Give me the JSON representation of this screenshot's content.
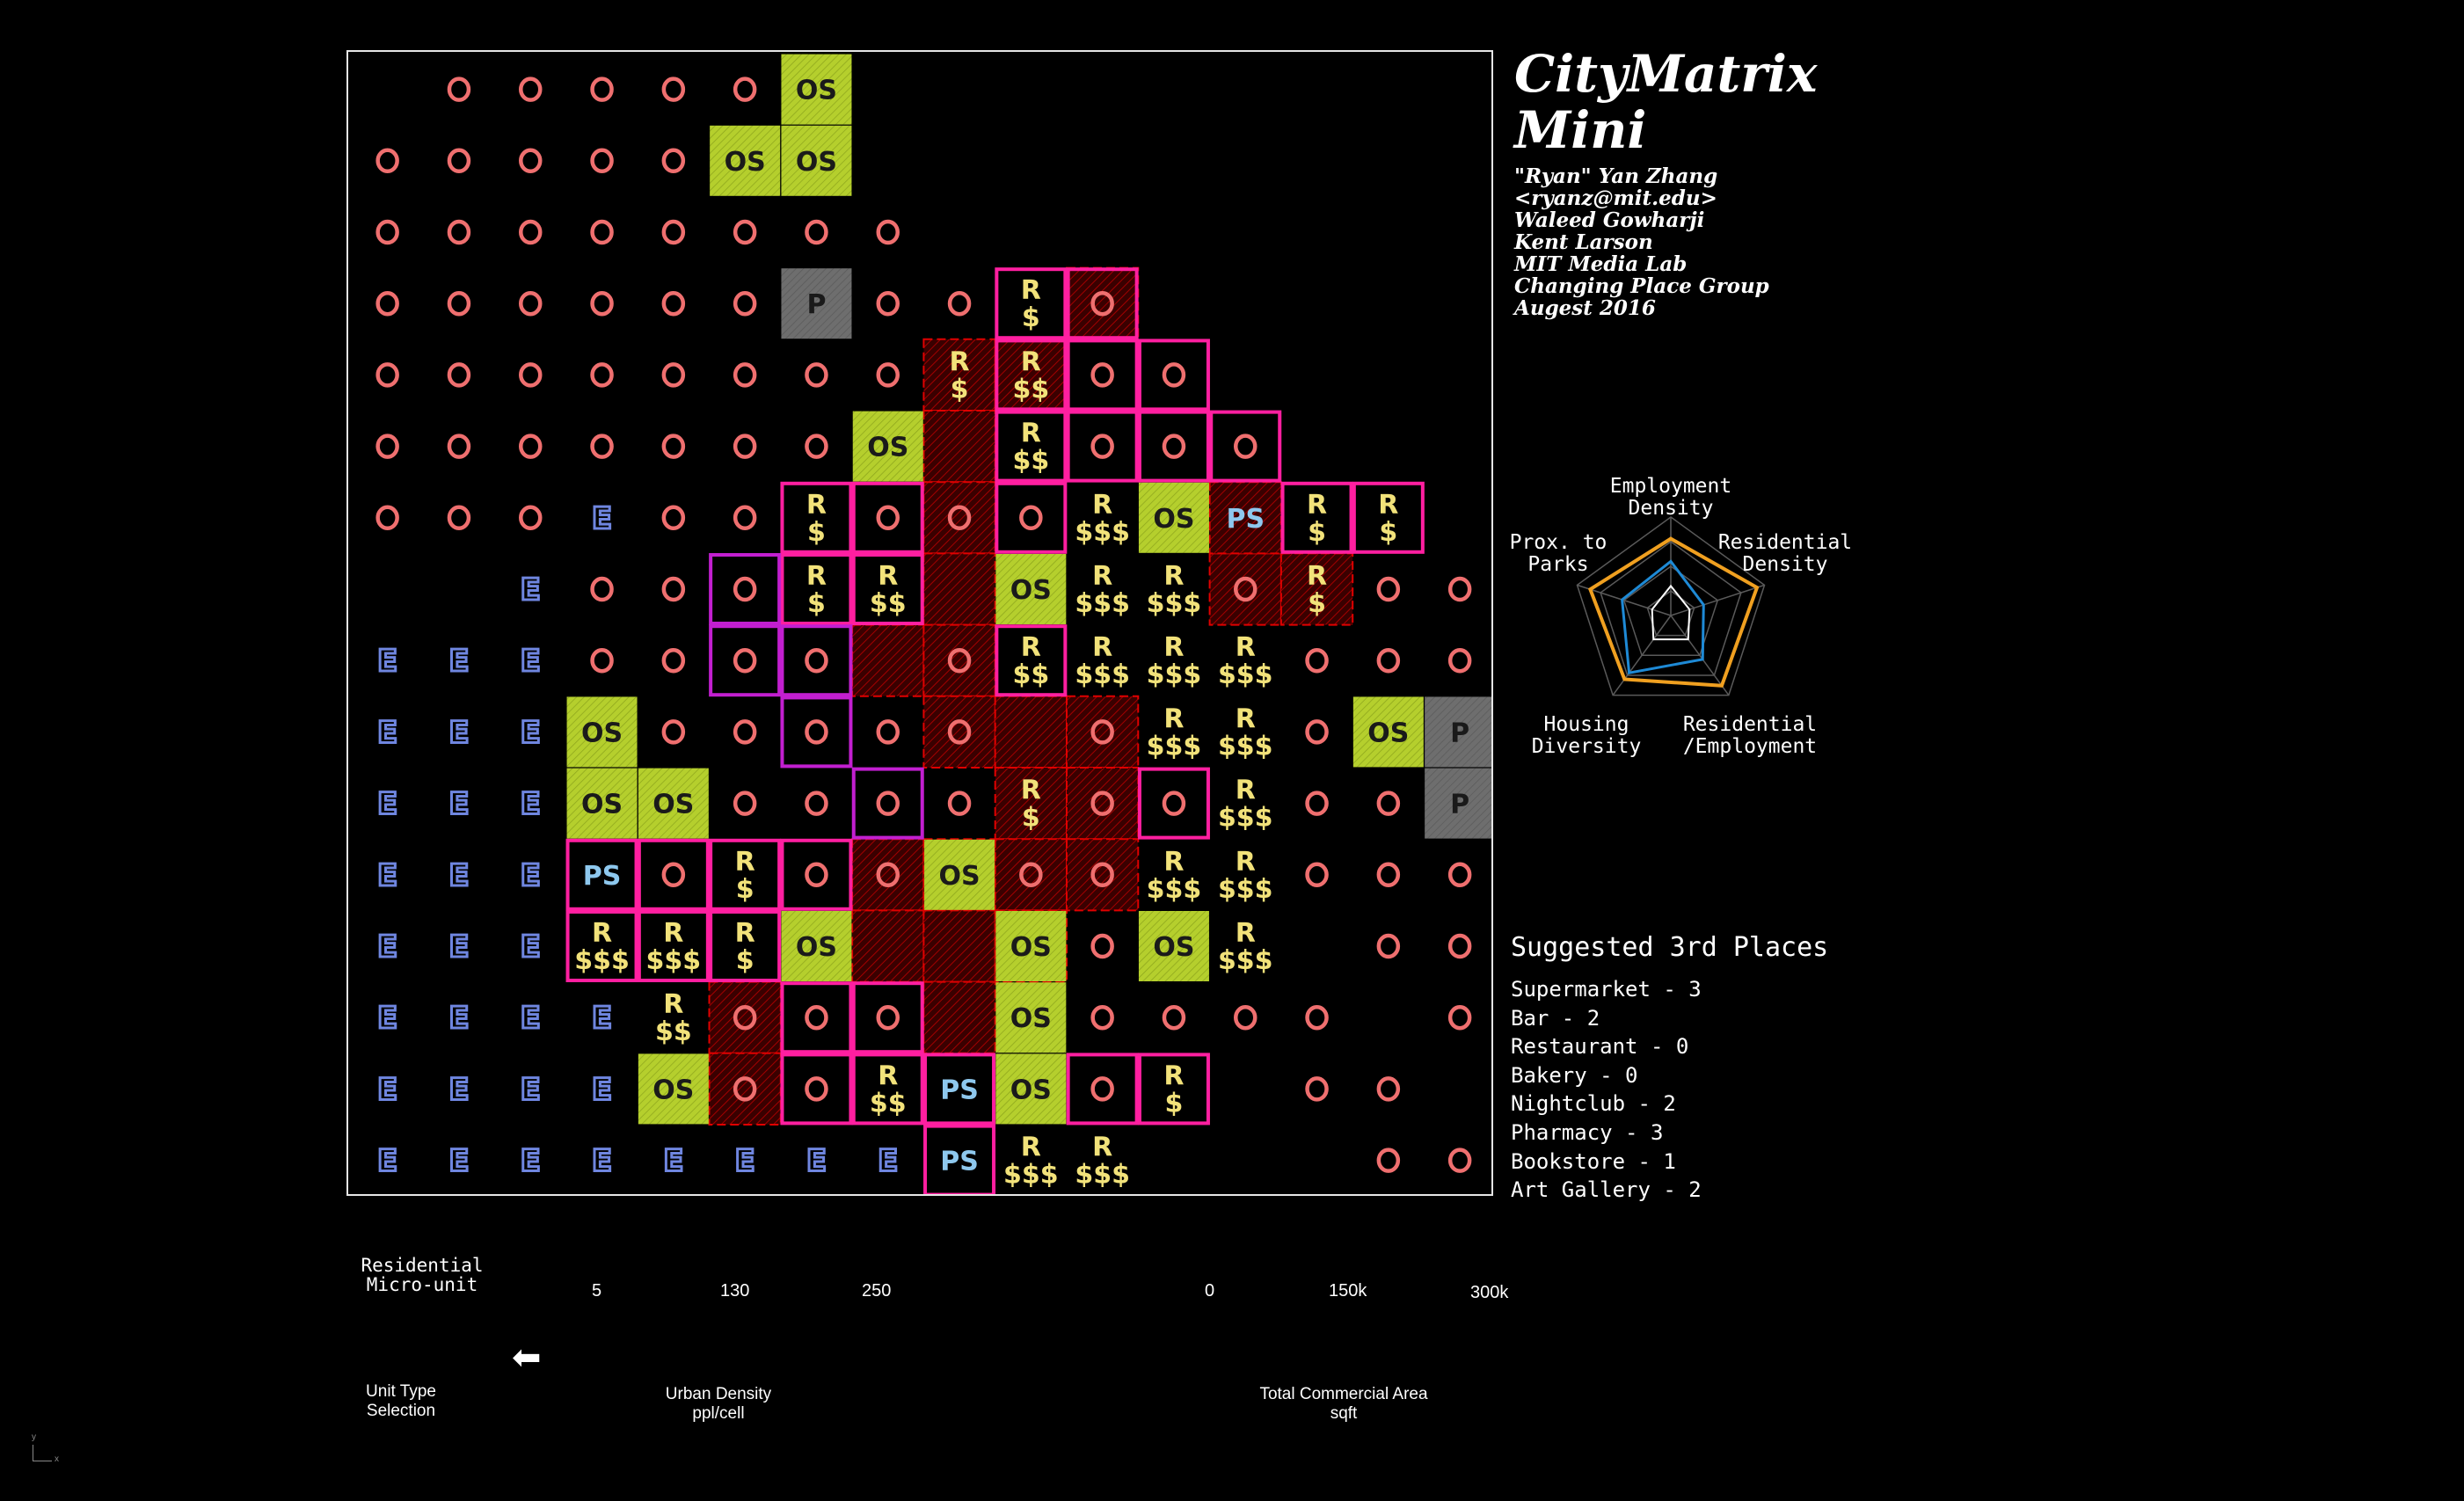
{
  "title": {
    "line1": "CityMatrix",
    "line2": "Mini"
  },
  "credits": [
    "\"Ryan\" Yan Zhang",
    "<ryanz@mit.edu>",
    "Waleed Gowharji",
    "Kent Larson",
    "MIT Media Lab",
    "Changing Place Group",
    "Augest 2016"
  ],
  "radar": {
    "labels": {
      "top": "Employment\nDensity",
      "right": "Residential\nDensity",
      "bottom_right": "Residential\n/Employment",
      "bottom_left": "Housing\nDiversity",
      "left": "Prox. to\nParks"
    },
    "series_colors": {
      "outer": "#f0a020",
      "inner": "#1e8ad6",
      "core": "#ffffff"
    },
    "values_outer": [
      0.78,
      0.92,
      0.88,
      0.8,
      0.86
    ],
    "values_inner": [
      0.55,
      0.35,
      0.55,
      0.72,
      0.52
    ],
    "values_core": [
      0.3,
      0.2,
      0.3,
      0.3,
      0.2
    ]
  },
  "places": {
    "heading": "Suggested 3rd Places",
    "items": [
      "Supermarket - 3",
      "Bar - 2",
      "Restaurant - 0",
      "Bakery - 0",
      "Nightclub - 2",
      "Pharmacy - 3",
      "Bookstore - 1",
      "Art Gallery - 2"
    ]
  },
  "controls": {
    "unit_type_value": "Residential\nMicro-unit",
    "unit_type_label": "Unit Type\nSelection",
    "density_ticks": [
      "5",
      "130",
      "250"
    ],
    "density_label": "Urban Density\nppl/cell",
    "commercial_ticks": [
      "0",
      "150k",
      "300k"
    ],
    "commercial_label": "Total Commercial Area\nsqft",
    "arrow_glyph": "⬅",
    "axis_y": "y",
    "axis_x": "x"
  },
  "colors": {
    "office": "#ef6f6f",
    "employment": "#6f86e0",
    "residential": "#f2e27a",
    "park": "#b5cf2d",
    "parking": "#6e6e6e",
    "public_space": "#8ec8ee",
    "highlight_pink": "#ff1fa0",
    "highlight_purple": "#c21fd0",
    "district_red": "#e00000"
  },
  "grid": {
    "rows": [
      [
        "",
        "O",
        "O",
        "O",
        "O",
        "O",
        "OS",
        "",
        "",
        "",
        "",
        "",
        "",
        "",
        "",
        ""
      ],
      [
        "O",
        "O",
        "O",
        "O",
        "O",
        "OS",
        "OS",
        "",
        "",
        "",
        "",
        "",
        "",
        "",
        "",
        ""
      ],
      [
        "O",
        "O",
        "O",
        "O",
        "O",
        "O",
        "O",
        "O",
        "",
        "",
        "",
        "",
        "",
        "",
        "",
        ""
      ],
      [
        "O",
        "O",
        "O",
        "O",
        "O",
        "O",
        "P",
        "O",
        "O",
        "R $",
        "O",
        "",
        "",
        "",
        "",
        ""
      ],
      [
        "O",
        "O",
        "O",
        "O",
        "O",
        "O",
        "O",
        "O",
        "R $",
        "R $$",
        "O",
        "O",
        "",
        "",
        "",
        ""
      ],
      [
        "O",
        "O",
        "O",
        "O",
        "O",
        "O",
        "O",
        "OS",
        "",
        "R $$",
        "O",
        "O",
        "O",
        "",
        "",
        ""
      ],
      [
        "O",
        "O",
        "O",
        "E",
        "O",
        "O",
        "R $",
        "O",
        "O",
        "O",
        "R $$$",
        "OS",
        "PS",
        "R $",
        "R $",
        ""
      ],
      [
        "",
        "",
        "E",
        "O",
        "O",
        "O",
        "R $",
        "R $$",
        "",
        "OS",
        "R $$$",
        "R $$$",
        "O",
        "R $",
        "O",
        "O"
      ],
      [
        "E",
        "E",
        "E",
        "O",
        "O",
        "O",
        "O",
        "",
        "O",
        "R $$",
        "R $$$",
        "R $$$",
        "R $$$",
        "O",
        "O",
        "O"
      ],
      [
        "E",
        "E",
        "E",
        "OS",
        "O",
        "O",
        "O",
        "O",
        "O",
        "",
        "O",
        "R $$$",
        "R $$$",
        "O",
        "OS",
        "P"
      ],
      [
        "E",
        "E",
        "E",
        "OS",
        "OS",
        "O",
        "O",
        "O",
        "O",
        "R $",
        "O",
        "O",
        "R $$$",
        "O",
        "O",
        "P"
      ],
      [
        "E",
        "E",
        "E",
        "PS",
        "O",
        "R $",
        "O",
        "O",
        "OS",
        "O",
        "O",
        "R $$$",
        "R $$$",
        "O",
        "O",
        "O"
      ],
      [
        "E",
        "E",
        "E",
        "R $$$",
        "R $$$",
        "R $",
        "OS",
        "",
        "",
        "OS",
        "O",
        "OS",
        "R $$$",
        "",
        "O",
        "O"
      ],
      [
        "E",
        "E",
        "E",
        "E",
        "R $$",
        "O",
        "O",
        "O",
        "",
        "OS",
        "O",
        "O",
        "O",
        "O",
        "",
        "O"
      ],
      [
        "E",
        "E",
        "E",
        "E",
        "OS",
        "O",
        "O",
        "R $$",
        "PS",
        "OS",
        "O",
        "R $",
        "",
        "O",
        "O",
        ""
      ],
      [
        "E",
        "E",
        "E",
        "E",
        "E",
        "E",
        "E",
        "E",
        "PS",
        "R $$$",
        "R $$$",
        "",
        "",
        "",
        "O",
        "O"
      ]
    ],
    "pink_boxes": [
      [
        3,
        9
      ],
      [
        3,
        10
      ],
      [
        4,
        9
      ],
      [
        4,
        10
      ],
      [
        4,
        11
      ],
      [
        5,
        9
      ],
      [
        5,
        10
      ],
      [
        5,
        11
      ],
      [
        5,
        12
      ],
      [
        6,
        6
      ],
      [
        6,
        7
      ],
      [
        6,
        9
      ],
      [
        6,
        13
      ],
      [
        6,
        14
      ],
      [
        7,
        6
      ],
      [
        7,
        7
      ],
      [
        8,
        9
      ],
      [
        10,
        11
      ],
      [
        11,
        3
      ],
      [
        11,
        4
      ],
      [
        11,
        5
      ],
      [
        11,
        6
      ],
      [
        12,
        3
      ],
      [
        12,
        4
      ],
      [
        12,
        5
      ],
      [
        13,
        6
      ],
      [
        13,
        7
      ],
      [
        14,
        6
      ],
      [
        14,
        7
      ],
      [
        14,
        8
      ],
      [
        14,
        10
      ],
      [
        14,
        11
      ],
      [
        15,
        8
      ]
    ],
    "purple_boxes": [
      [
        7,
        5
      ],
      [
        8,
        5
      ],
      [
        8,
        6
      ],
      [
        9,
        6
      ],
      [
        10,
        7
      ]
    ],
    "district_cells": [
      [
        4,
        8
      ],
      [
        5,
        8
      ],
      [
        6,
        8
      ],
      [
        7,
        8
      ],
      [
        8,
        7
      ],
      [
        8,
        8
      ],
      [
        9,
        8
      ],
      [
        9,
        9
      ],
      [
        9,
        10
      ],
      [
        10,
        9
      ],
      [
        10,
        10
      ],
      [
        11,
        7
      ],
      [
        11,
        8
      ],
      [
        11,
        9
      ],
      [
        11,
        10
      ],
      [
        12,
        7
      ],
      [
        12,
        8
      ],
      [
        13,
        5
      ],
      [
        13,
        8
      ],
      [
        14,
        5
      ],
      [
        7,
        12
      ],
      [
        7,
        13
      ],
      [
        12,
        9
      ],
      [
        3,
        10
      ],
      [
        4,
        9
      ],
      [
        6,
        12
      ]
    ]
  }
}
